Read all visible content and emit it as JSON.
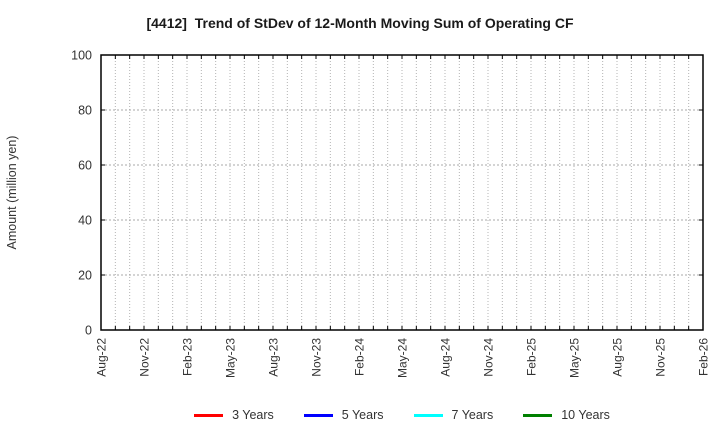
{
  "chart_data": {
    "type": "line",
    "title": "[4412]  Trend of StDev of 12-Month Moving Sum of Operating CF",
    "ylabel": "Amount (million yen)",
    "ylim": [
      0,
      100
    ],
    "yticks": [
      0,
      20,
      40,
      60,
      80,
      100
    ],
    "x_tick_labels": [
      "Aug-22",
      "Nov-22",
      "Feb-23",
      "May-23",
      "Aug-23",
      "Nov-23",
      "Feb-24",
      "May-24",
      "Aug-24",
      "Nov-24",
      "Feb-25",
      "May-25",
      "Aug-25",
      "Nov-25",
      "Feb-26"
    ],
    "x_label_every_n_months": 3,
    "x_total_months": 42,
    "grid": true,
    "legend_position": "bottom",
    "axis_color": "#000000",
    "grid_color": "#a8a8a8",
    "tick_label_color": "#333333",
    "series": [
      {
        "name": "3 Years",
        "color": "#ff0000",
        "values": []
      },
      {
        "name": "5 Years",
        "color": "#0000ff",
        "values": []
      },
      {
        "name": "7 Years",
        "color": "#00ffff",
        "values": []
      },
      {
        "name": "10 Years",
        "color": "#008000",
        "values": []
      }
    ]
  }
}
